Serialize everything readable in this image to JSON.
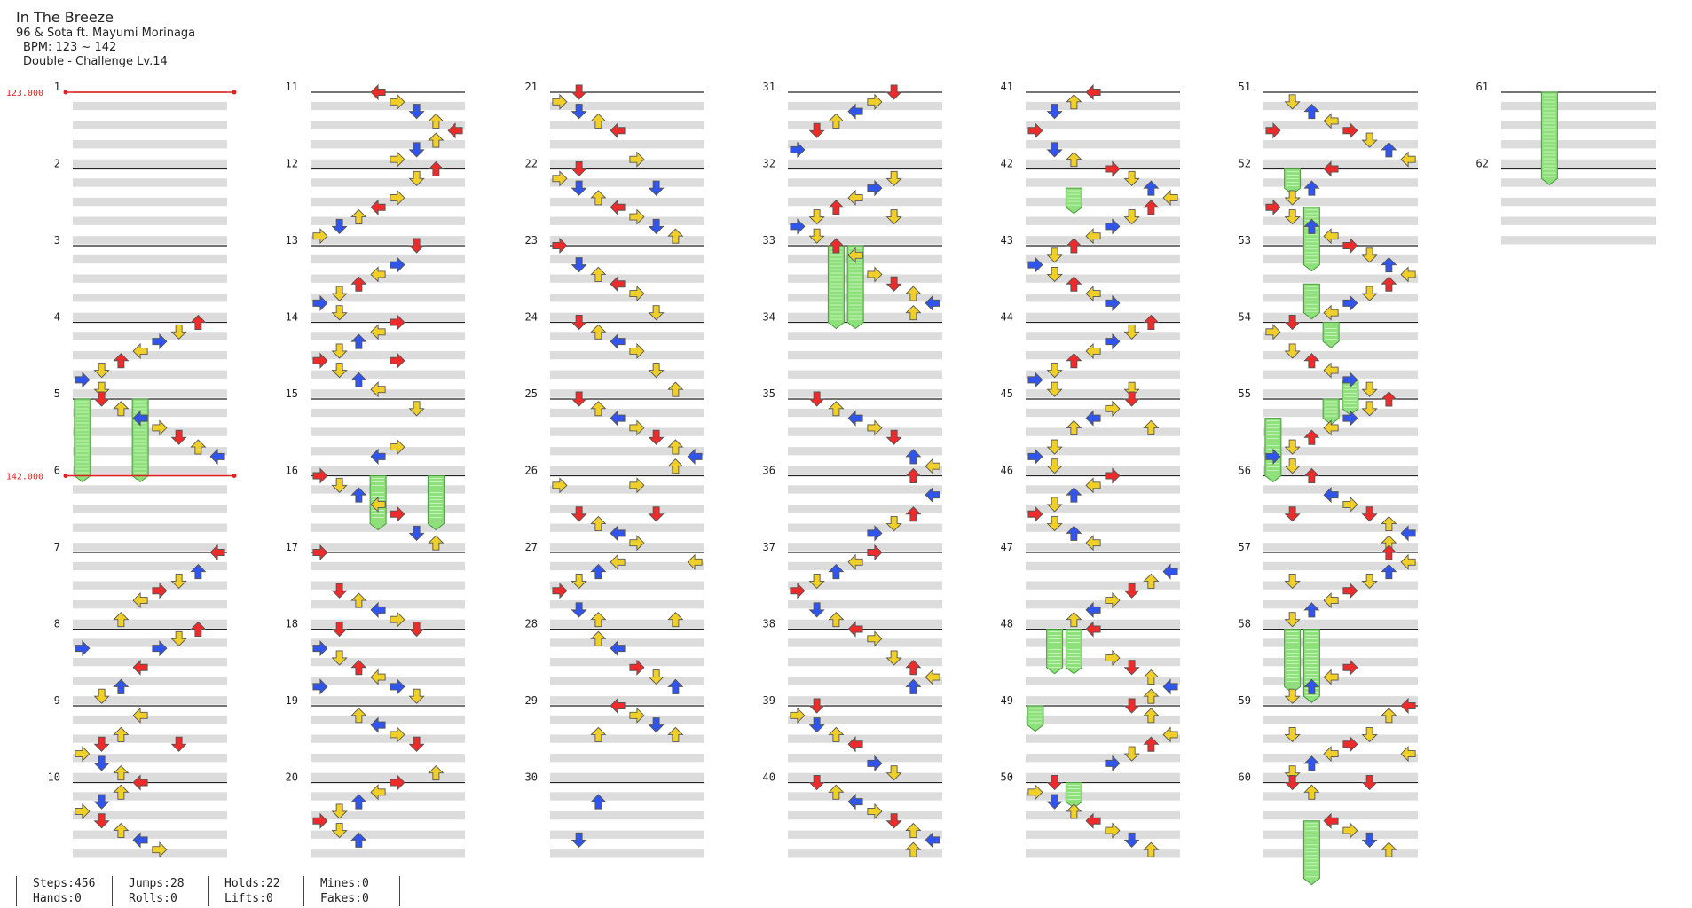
{
  "song": {
    "title": "In The Breeze",
    "artist": "96 & Sota ft. Mayumi Morinaga",
    "bpm": "BPM: 123 ~ 142",
    "difficulty": "Double - Challenge Lv.14"
  },
  "bpm_changes": [
    {
      "measure": 1,
      "label": "123.000"
    },
    {
      "measure": 6,
      "label": "142.000"
    }
  ],
  "measures": [
    1,
    2,
    3,
    4,
    5,
    6,
    7,
    8,
    9,
    10,
    11,
    12,
    13,
    14,
    15,
    16,
    17,
    18,
    19,
    20,
    21,
    22,
    23,
    24,
    25,
    26,
    27,
    28,
    29,
    30,
    31,
    32,
    33,
    34,
    35,
    36,
    37,
    38,
    39,
    40,
    41,
    42,
    43,
    44,
    45,
    46,
    47,
    48,
    49,
    50,
    51,
    52,
    53,
    54,
    55,
    56,
    57,
    58,
    59,
    60,
    61,
    62
  ],
  "colors": {
    "quarter": "#ee2a2a",
    "eighth": "#3055ee",
    "sixteenth": "#f0d028",
    "hold": "#8ee07a",
    "bpm": "#e02020",
    "band": "#dcdcdc"
  },
  "stats": {
    "row1": [
      "Steps:456",
      "Jumps:28",
      "Holds:22",
      "Mines:0"
    ],
    "row2": [
      "Hands:0",
      "Rolls:0",
      "Lifts:0",
      "Fakes:0"
    ]
  }
}
